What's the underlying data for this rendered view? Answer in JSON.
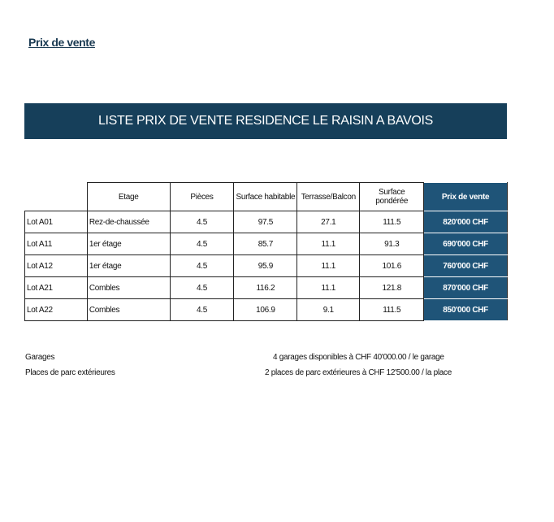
{
  "title": "Prix de vente",
  "banner": "LISTE PRIX DE VENTE RESIDENCE LE RAISIN A BAVOIS",
  "table": {
    "headers": [
      "",
      "Etage",
      "Pièces",
      "Surface habitable",
      "Terrasse/Balcon",
      "Surface pondérée",
      "Prix de vente"
    ],
    "rows": [
      [
        "Lot A01",
        "Rez-de-chaussée",
        "4.5",
        "97.5",
        "27.1",
        "111.5",
        "820'000 CHF"
      ],
      [
        "Lot A11",
        "1er étage",
        "4.5",
        "85.7",
        "11.1",
        "91.3",
        "690'000 CHF"
      ],
      [
        "Lot A12",
        "1er étage",
        "4.5",
        "95.9",
        "11.1",
        "101.6",
        "760'000 CHF"
      ],
      [
        "Lot A21",
        "Combles",
        "4.5",
        "116.2",
        "11.1",
        "121.8",
        "870'000 CHF"
      ],
      [
        "Lot A22",
        "Combles",
        "4.5",
        "106.9",
        "9.1",
        "111.5",
        "850'000 CHF"
      ]
    ]
  },
  "footer": [
    {
      "label": "Garages",
      "value": "4 garages disponibles à CHF 40'000.00 / le garage"
    },
    {
      "label": "Places de parc extérieures",
      "value": "2 places de parc extérieures à CHF 12'500.00 / la place"
    }
  ],
  "colors": {
    "banner": "#163f5a",
    "price_column": "#1f5478"
  }
}
